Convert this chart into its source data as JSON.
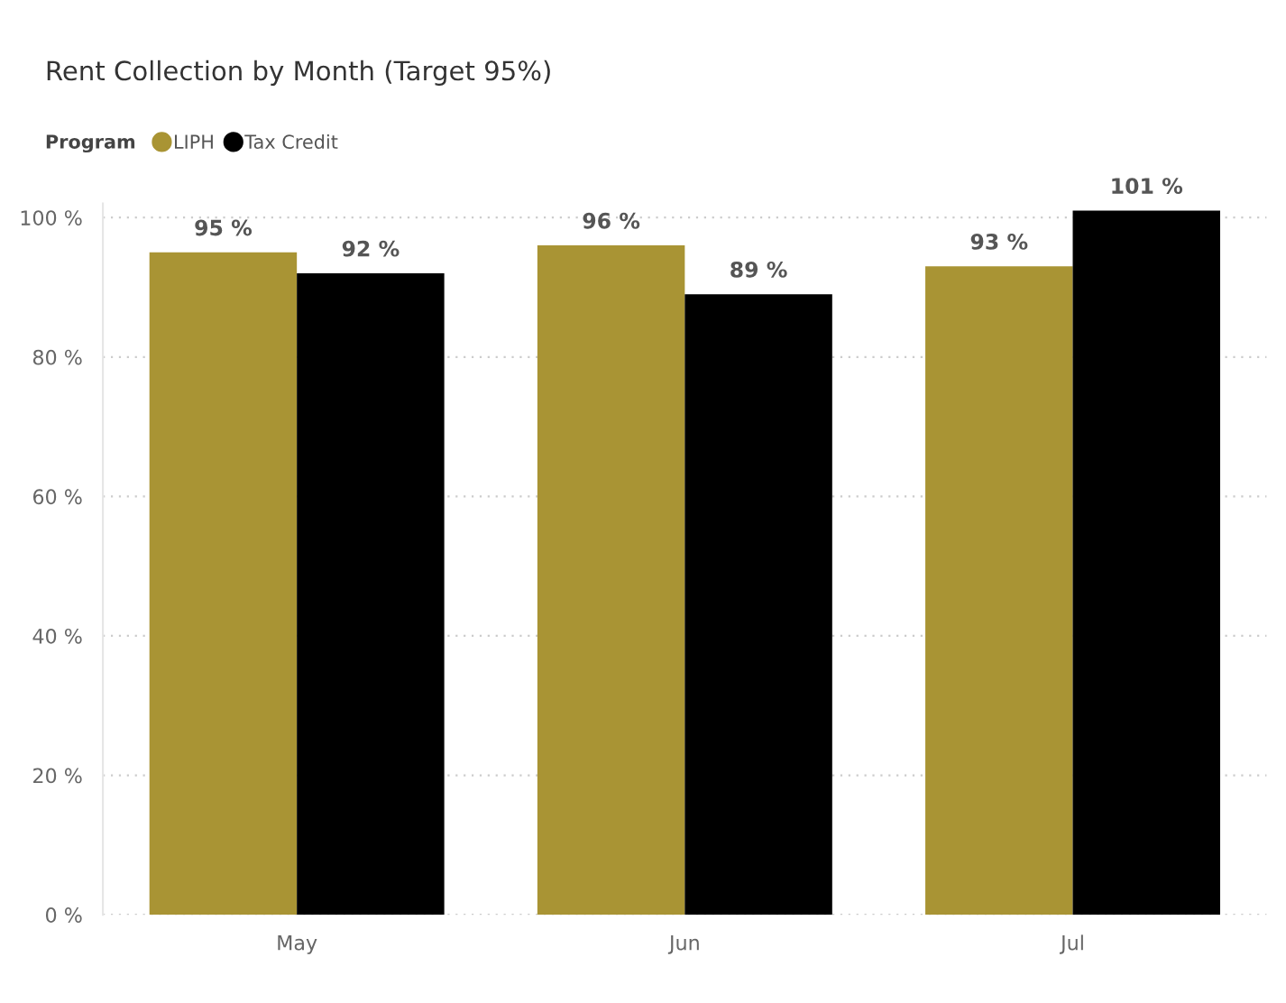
{
  "chart_data": {
    "type": "bar",
    "title": "Rent Collection by Month (Target 95%)",
    "legend_title": "Program",
    "categories": [
      "May",
      "Jun",
      "Jul"
    ],
    "series": [
      {
        "name": "LIPH",
        "color": "#a99434",
        "values": [
          95,
          96,
          93
        ],
        "value_labels": [
          "95 %",
          "96 %",
          "93 %"
        ]
      },
      {
        "name": "Tax Credit",
        "color": "#000000",
        "values": [
          92,
          89,
          101
        ],
        "value_labels": [
          "92 %",
          "89 %",
          "101 %"
        ]
      }
    ],
    "ylim": [
      0,
      102
    ],
    "yticks": [
      {
        "value": 0,
        "label": "0 %"
      },
      {
        "value": 20,
        "label": "20 %"
      },
      {
        "value": 40,
        "label": "40 %"
      },
      {
        "value": 60,
        "label": "60 %"
      },
      {
        "value": 80,
        "label": "80 %"
      },
      {
        "value": 100,
        "label": "100 %"
      }
    ],
    "grid": "y",
    "legend": "top left"
  }
}
